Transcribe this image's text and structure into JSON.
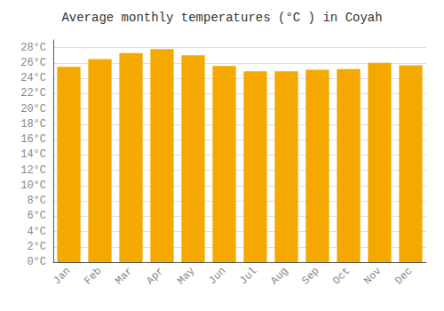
{
  "chart_data": {
    "type": "bar",
    "title": "Average monthly temperatures (°C ) in Coyah",
    "categories": [
      "Jan",
      "Feb",
      "Mar",
      "Apr",
      "May",
      "Jun",
      "Jul",
      "Aug",
      "Sep",
      "Oct",
      "Nov",
      "Dec"
    ],
    "values": [
      25.5,
      26.5,
      27.3,
      27.8,
      27.0,
      25.6,
      24.9,
      24.9,
      25.1,
      25.2,
      26.0,
      25.7
    ],
    "color": "#F5A800",
    "ylim": [
      0,
      29
    ],
    "yticks": [
      {
        "value": 0,
        "label": "0°C"
      },
      {
        "value": 2,
        "label": "2°C"
      },
      {
        "value": 4,
        "label": "4°C"
      },
      {
        "value": 6,
        "label": "6°C"
      },
      {
        "value": 8,
        "label": "8°C"
      },
      {
        "value": 10,
        "label": "10°C"
      },
      {
        "value": 12,
        "label": "12°C"
      },
      {
        "value": 14,
        "label": "14°C"
      },
      {
        "value": 16,
        "label": "16°C"
      },
      {
        "value": 18,
        "label": "18°C"
      },
      {
        "value": 20,
        "label": "20°C"
      },
      {
        "value": 22,
        "label": "22°C"
      },
      {
        "value": 24,
        "label": "24°C"
      },
      {
        "value": 26,
        "label": "26°C"
      },
      {
        "value": 28,
        "label": "28°C"
      }
    ],
    "grid": true
  }
}
